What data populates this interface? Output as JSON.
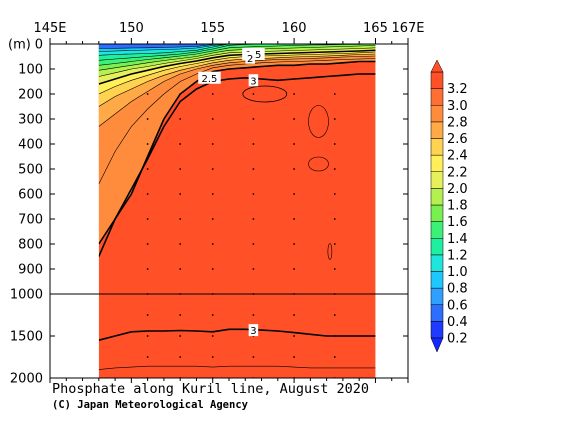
{
  "chart_data": {
    "type": "heatmap",
    "title": "Phosphate along Kuril line, August 2020",
    "credit": "(C) Japan Meteorological Agency",
    "x_axis": {
      "range": [
        145,
        167
      ],
      "tick_labels": [
        {
          "value": 145,
          "label": "145E"
        },
        {
          "value": 150,
          "label": "150"
        },
        {
          "value": 155,
          "label": "155"
        },
        {
          "value": 160,
          "label": "160"
        },
        {
          "value": 165,
          "label": "165"
        },
        {
          "value": 167,
          "label": "167E"
        }
      ],
      "data_extent": [
        148,
        165
      ]
    },
    "y_axis": {
      "unit_label": "(m)",
      "upper_ticks": [
        0,
        100,
        200,
        300,
        400,
        500,
        600,
        700,
        800,
        900,
        1000
      ],
      "lower_ticks": [
        1500,
        2000
      ],
      "range": [
        0,
        2000
      ],
      "break_at": 1000,
      "inverted": true
    },
    "colorbar": {
      "levels": [
        0.2,
        0.4,
        0.6,
        0.8,
        1.0,
        1.2,
        1.4,
        1.6,
        1.8,
        2.0,
        2.2,
        2.4,
        2.6,
        2.8,
        3.0,
        3.2
      ],
      "labels": [
        "0.2",
        "0.4",
        "0.6",
        "0.8",
        "1.0",
        "1.2",
        "1.4",
        "1.6",
        "1.8",
        "2.0",
        "2.2",
        "2.4",
        "2.6",
        "2.8",
        "3.0",
        "3.2"
      ],
      "colors": [
        "#1e3cff",
        "#2d6eff",
        "#2fa0ff",
        "#1ec8ff",
        "#1ee6dc",
        "#1ef0a0",
        "#3cf078",
        "#78f050",
        "#b4f050",
        "#e6f05a",
        "#fff05a",
        "#ffd250",
        "#ffaa46",
        "#ff8c3c",
        "#ff6e32",
        "#ff5028"
      ]
    },
    "contour_labels": [
      {
        "text": "1.5",
        "lon": 157.5,
        "depth": 40
      },
      {
        "text": "2",
        "lon": 157.3,
        "depth": 55
      },
      {
        "text": "2.5",
        "lon": 154.8,
        "depth": 135
      },
      {
        "text": "3",
        "lon": 157.5,
        "depth": 145
      },
      {
        "text": "3",
        "lon": 157.5,
        "depth": 1430
      }
    ],
    "station_lons": [
      148,
      151,
      153,
      155,
      157.5,
      160,
      162.5,
      165
    ]
  }
}
